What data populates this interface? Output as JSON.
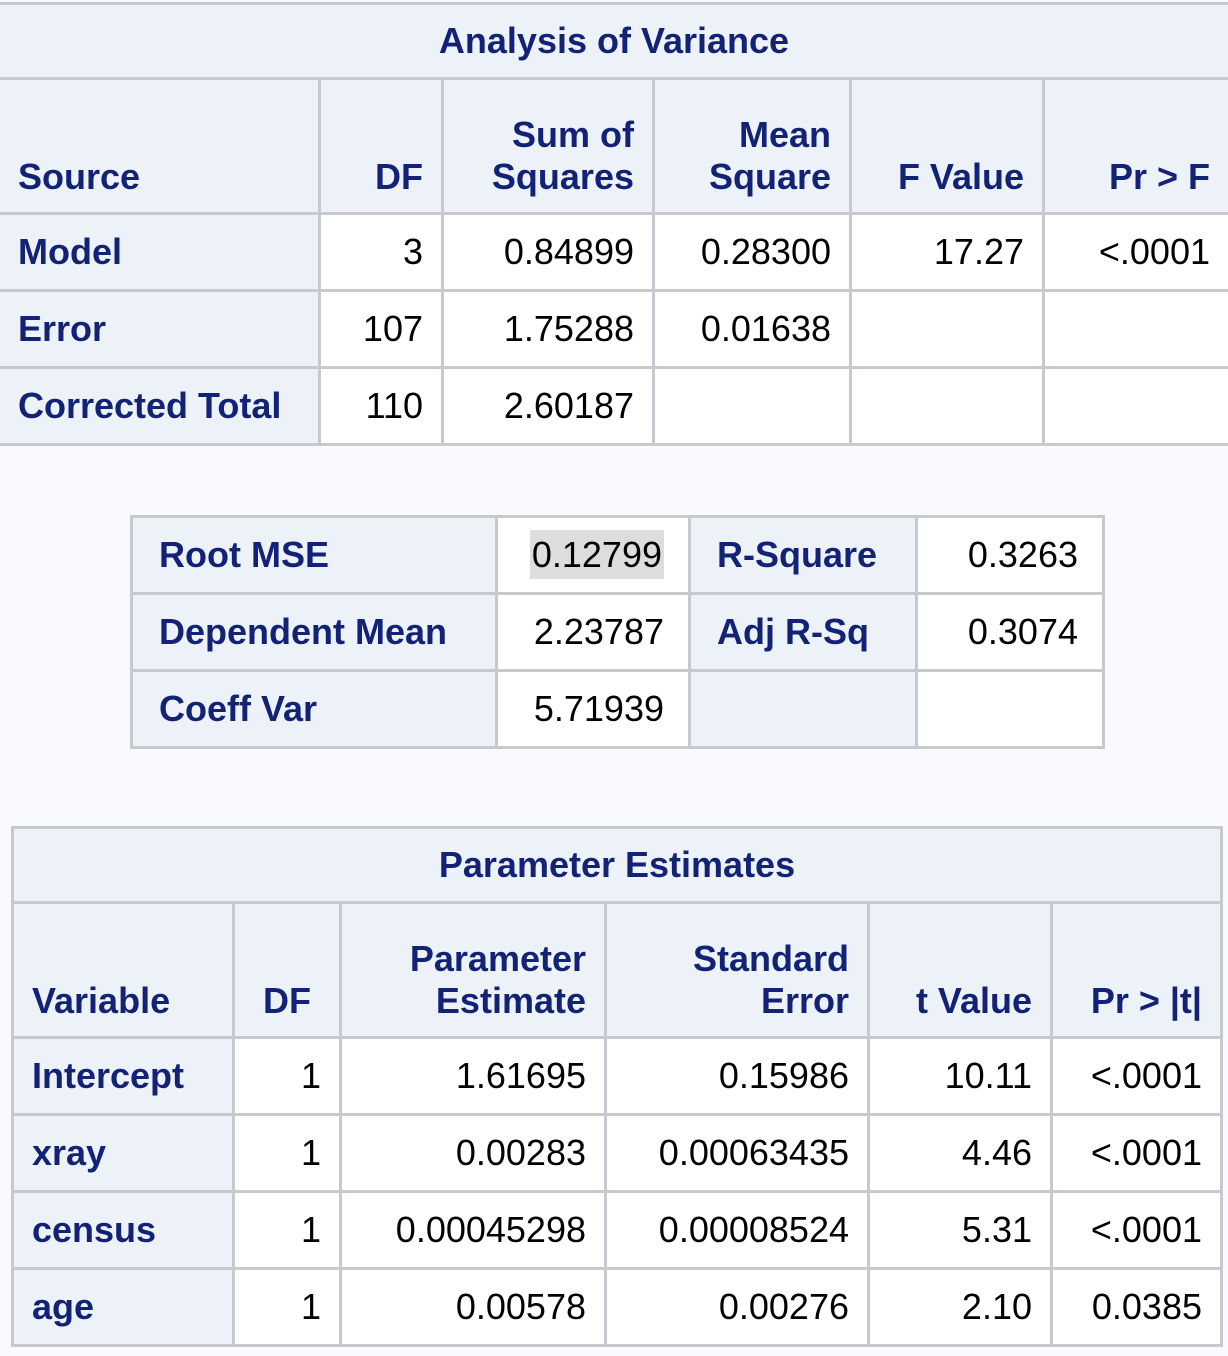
{
  "anova": {
    "title": "Analysis of Variance",
    "headers": {
      "source": "Source",
      "df": "DF",
      "ss_line1": "Sum of",
      "ss_line2": "Squares",
      "ms_line1": "Mean",
      "ms_line2": "Square",
      "f": "F Value",
      "p": "Pr > F"
    },
    "rows": [
      {
        "source": "Model",
        "df": "3",
        "ss": "0.84899",
        "ms": "0.28300",
        "f": "17.27",
        "p": "<.0001"
      },
      {
        "source": "Error",
        "df": "107",
        "ss": "1.75288",
        "ms": "0.01638",
        "f": "",
        "p": ""
      },
      {
        "source": "Corrected Total",
        "df": "110",
        "ss": "2.60187",
        "ms": "",
        "f": "",
        "p": ""
      }
    ]
  },
  "fit": {
    "rows": [
      {
        "label1": "Root MSE",
        "value1": "0.12799",
        "label2": "R-Square",
        "value2": "0.3263"
      },
      {
        "label1": "Dependent Mean",
        "value1": "2.23787",
        "label2": "Adj R-Sq",
        "value2": "0.3074"
      },
      {
        "label1": "Coeff Var",
        "value1": "5.71939",
        "label2": "",
        "value2": ""
      }
    ]
  },
  "params": {
    "title": "Parameter Estimates",
    "headers": {
      "variable": "Variable",
      "df": "DF",
      "est_line1": "Parameter",
      "est_line2": "Estimate",
      "se_line1": "Standard",
      "se_line2": "Error",
      "t": "t Value",
      "p": "Pr > |t|"
    },
    "rows": [
      {
        "variable": "Intercept",
        "df": "1",
        "est": "1.61695",
        "se": "0.15986",
        "t": "10.11",
        "p": "<.0001"
      },
      {
        "variable": "xray",
        "df": "1",
        "est": "0.00283",
        "se": "0.00063435",
        "t": "4.46",
        "p": "<.0001"
      },
      {
        "variable": "census",
        "df": "1",
        "est": "0.00045298",
        "se": "0.00008524",
        "t": "5.31",
        "p": "<.0001"
      },
      {
        "variable": "age",
        "df": "1",
        "est": "0.00578",
        "se": "0.00276",
        "t": "2.10",
        "p": "0.0385"
      }
    ]
  }
}
